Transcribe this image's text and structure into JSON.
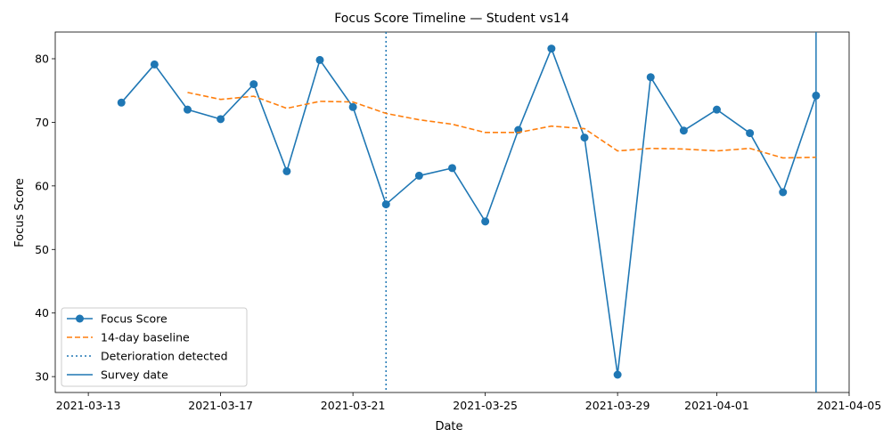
{
  "chart_data": {
    "type": "line",
    "title": "Focus Score Timeline — Student vs14",
    "xlabel": "Date",
    "ylabel": "Focus Score",
    "x_ticks": [
      "2021-03-13",
      "2021-03-17",
      "2021-03-21",
      "2021-03-25",
      "2021-03-29",
      "2021-04-01",
      "2021-04-05"
    ],
    "y_ticks": [
      30,
      40,
      50,
      60,
      70,
      80
    ],
    "xlim": [
      "2021-03-12T00:00",
      "2021-04-05T00:00"
    ],
    "ylim": [
      27.5,
      84.2
    ],
    "grid": false,
    "legend_position": "lower-left",
    "series": [
      {
        "name": "Focus Score",
        "style": "solid-line-with-circle-markers",
        "color": "#1f77b4",
        "points": [
          [
            "2021-03-14",
            73.1
          ],
          [
            "2021-03-15",
            79.1
          ],
          [
            "2021-03-16",
            72.0
          ],
          [
            "2021-03-17",
            70.5
          ],
          [
            "2021-03-18",
            76.0
          ],
          [
            "2021-03-19",
            62.3
          ],
          [
            "2021-03-20",
            79.8
          ],
          [
            "2021-03-21",
            72.4
          ],
          [
            "2021-03-22",
            57.1
          ],
          [
            "2021-03-23",
            61.6
          ],
          [
            "2021-03-24",
            62.8
          ],
          [
            "2021-03-25",
            54.4
          ],
          [
            "2021-03-26",
            68.8
          ],
          [
            "2021-03-27",
            81.6
          ],
          [
            "2021-03-28",
            67.6
          ],
          [
            "2021-03-29",
            30.3
          ],
          [
            "2021-03-30",
            77.1
          ],
          [
            "2021-03-31",
            68.7
          ],
          [
            "2021-04-01",
            72.0
          ],
          [
            "2021-04-02",
            68.3
          ],
          [
            "2021-04-03",
            59.0
          ],
          [
            "2021-04-04",
            74.2
          ]
        ]
      },
      {
        "name": "14-day baseline",
        "style": "dashed",
        "color": "#ff7f0e",
        "points": [
          [
            "2021-03-16",
            74.7
          ],
          [
            "2021-03-17",
            73.6
          ],
          [
            "2021-03-18",
            74.1
          ],
          [
            "2021-03-19",
            72.2
          ],
          [
            "2021-03-20",
            73.3
          ],
          [
            "2021-03-21",
            73.2
          ],
          [
            "2021-03-22",
            71.4
          ],
          [
            "2021-03-23",
            70.4
          ],
          [
            "2021-03-24",
            69.7
          ],
          [
            "2021-03-25",
            68.4
          ],
          [
            "2021-03-26",
            68.4
          ],
          [
            "2021-03-27",
            69.4
          ],
          [
            "2021-03-28",
            69.0
          ],
          [
            "2021-03-29",
            65.5
          ],
          [
            "2021-03-30",
            65.9
          ],
          [
            "2021-03-31",
            65.8
          ],
          [
            "2021-04-01",
            65.5
          ],
          [
            "2021-04-02",
            65.9
          ],
          [
            "2021-04-03",
            64.4
          ],
          [
            "2021-04-04",
            64.5
          ]
        ]
      }
    ],
    "vlines": [
      {
        "name": "Deterioration detected",
        "style": "dotted",
        "color": "#1f77b4",
        "x": "2021-03-22"
      },
      {
        "name": "Survey date",
        "style": "solid",
        "color": "#1f77b4",
        "x": "2021-04-04"
      }
    ]
  }
}
